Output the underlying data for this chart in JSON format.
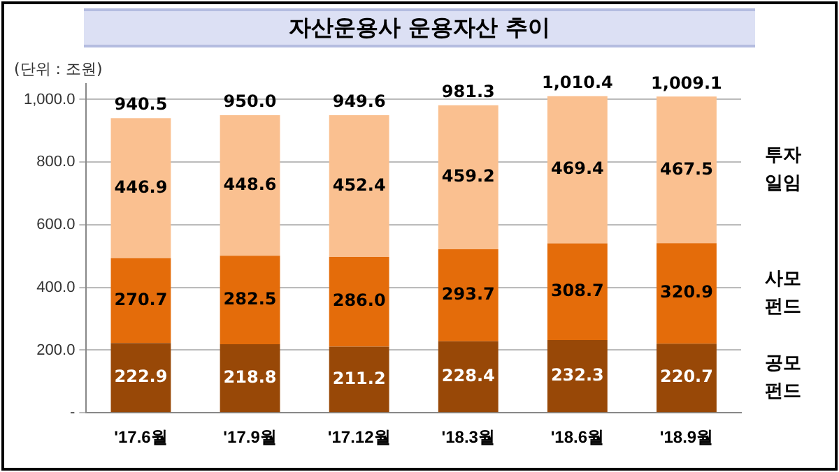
{
  "chart_data": {
    "type": "bar",
    "title": "자산운용사 운용자산 추이",
    "stacked": true,
    "categories": [
      "'17.6월",
      "'17.9월",
      "'17.12월",
      "'18.3월",
      "'18.6월",
      "'18.9월"
    ],
    "series": [
      {
        "name": "공모 펀드",
        "color": "#984807",
        "values": [
          222.9,
          218.8,
          211.2,
          228.4,
          232.3,
          220.7
        ],
        "value_labels": [
          "222.9",
          "218.8",
          "211.2",
          "228.4",
          "232.3",
          "220.7"
        ]
      },
      {
        "name": "사모 펀드",
        "color": "#e46c0a",
        "values": [
          270.7,
          282.5,
          286.0,
          293.7,
          308.7,
          320.9
        ],
        "value_labels": [
          "270.7",
          "282.5",
          "286.0",
          "293.7",
          "308.7",
          "320.9"
        ]
      },
      {
        "name": "투자 일임",
        "color": "#fac090",
        "values": [
          446.9,
          448.6,
          452.4,
          459.2,
          469.4,
          467.5
        ],
        "value_labels": [
          "446.9",
          "448.6",
          "452.4",
          "459.2",
          "469.4",
          "467.5"
        ]
      }
    ],
    "totals": [
      "940.5",
      "950.0",
      "949.6",
      "981.3",
      "1,010.4",
      "1,009.1"
    ],
    "ylim": [
      0,
      1050
    ],
    "yticks": [
      {
        "value": 0,
        "label": "-"
      },
      {
        "value": 200,
        "label": "200.0"
      },
      {
        "value": 400,
        "label": "400.0"
      },
      {
        "value": 600,
        "label": "600.0"
      },
      {
        "value": 800,
        "label": "800.0"
      },
      {
        "value": 1000,
        "label": "1,000.0"
      }
    ],
    "grid": "y",
    "legend": false,
    "annotations": [
      "(단위 : 조원)"
    ]
  }
}
